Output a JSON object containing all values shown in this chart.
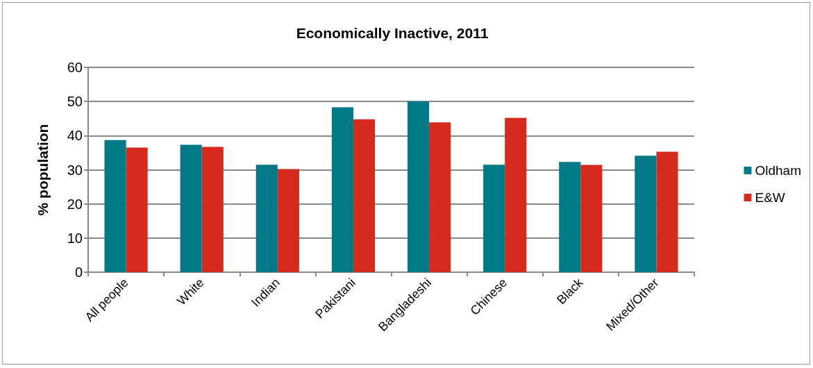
{
  "chart_data": {
    "type": "bar",
    "title": "Economically Inactive, 2011",
    "ylabel": "% population",
    "categories": [
      "All people",
      "White",
      "Indian",
      "Pakistani",
      "Bangladeshi",
      "Chinese",
      "Black",
      "Mixed/Other"
    ],
    "series": [
      {
        "name": "Oldham",
        "color": "#007a87",
        "values": [
          38.7,
          37.3,
          31.5,
          48.3,
          50.0,
          31.5,
          32.3,
          34.1
        ]
      },
      {
        "name": "E&W",
        "color": "#d52b1e",
        "values": [
          36.5,
          36.7,
          30.2,
          44.8,
          43.9,
          45.2,
          31.4,
          35.3
        ]
      }
    ],
    "ylim": [
      0,
      60
    ],
    "yticks": [
      0,
      10,
      20,
      30,
      40,
      50,
      60
    ],
    "grid": "y",
    "legend": "right"
  }
}
